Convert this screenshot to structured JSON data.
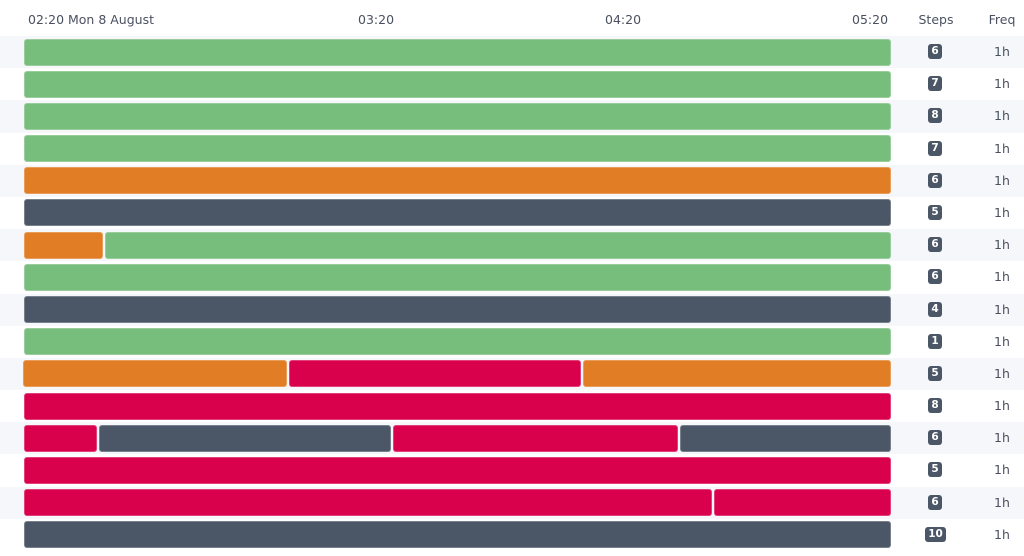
{
  "header": {
    "ticks": [
      "02:20 Mon 8 August",
      "03:20",
      "04:20",
      "05:20"
    ],
    "steps_label": "Steps",
    "freq_label": "Freq"
  },
  "colors": {
    "success": "#77bd7c",
    "warning": "#e07d25",
    "failed": "#d9004c",
    "skipped": "#4b5666"
  },
  "rows": [
    {
      "segments": [
        "success"
      ],
      "steps": "6",
      "freq": "1h"
    },
    {
      "segments": [
        "success"
      ],
      "steps": "7",
      "freq": "1h"
    },
    {
      "segments": [
        "success"
      ],
      "steps": "8",
      "freq": "1h"
    },
    {
      "segments": [
        "success"
      ],
      "steps": "7",
      "freq": "1h"
    },
    {
      "segments": [
        "warning"
      ],
      "steps": "6",
      "freq": "1h"
    },
    {
      "segments": [
        "skipped"
      ],
      "steps": "5",
      "freq": "1h"
    },
    {
      "segments": [
        "warning",
        "success"
      ],
      "steps": "6",
      "freq": "1h"
    },
    {
      "segments": [
        "success"
      ],
      "steps": "6",
      "freq": "1h"
    },
    {
      "segments": [
        "skipped"
      ],
      "steps": "4",
      "freq": "1h"
    },
    {
      "segments": [
        "success"
      ],
      "steps": "1",
      "freq": "1h"
    },
    {
      "segments": [
        "warning",
        "failed",
        "warning"
      ],
      "steps": "5",
      "freq": "1h"
    },
    {
      "segments": [
        "failed"
      ],
      "steps": "8",
      "freq": "1h"
    },
    {
      "segments": [
        "failed",
        "skipped",
        "failed",
        "skipped"
      ],
      "steps": "6",
      "freq": "1h"
    },
    {
      "segments": [
        "failed"
      ],
      "steps": "5",
      "freq": "1h"
    },
    {
      "segments": [
        "failed",
        "failed"
      ],
      "steps": "6",
      "freq": "1h"
    },
    {
      "segments": [
        "skipped"
      ],
      "steps": "10",
      "freq": "1h"
    }
  ]
}
